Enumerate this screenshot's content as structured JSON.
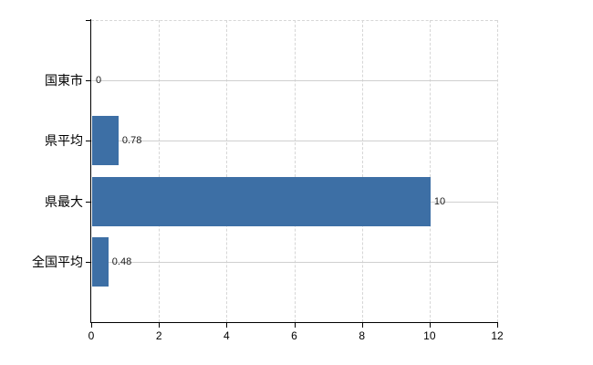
{
  "chart_data": {
    "type": "bar",
    "orientation": "horizontal",
    "title": "",
    "xlabel": "",
    "ylabel": "",
    "categories": [
      "国東市",
      "県平均",
      "県最大",
      "全国平均"
    ],
    "values": [
      0,
      0.78,
      10,
      0.48
    ],
    "value_labels": [
      "0",
      "0.78",
      "10",
      "0.48"
    ],
    "xlim": [
      0,
      12
    ],
    "x_ticks": [
      0,
      2,
      4,
      6,
      8,
      10,
      12
    ],
    "grid": "on",
    "legend": "none",
    "colors": {
      "bar": "#3d6fa5",
      "axis": "#000000",
      "gridline_vertical": "#d6d6d6",
      "gridline_horizontal": "#cfcfcf",
      "text": "#000000",
      "background": "#ffffff"
    }
  }
}
